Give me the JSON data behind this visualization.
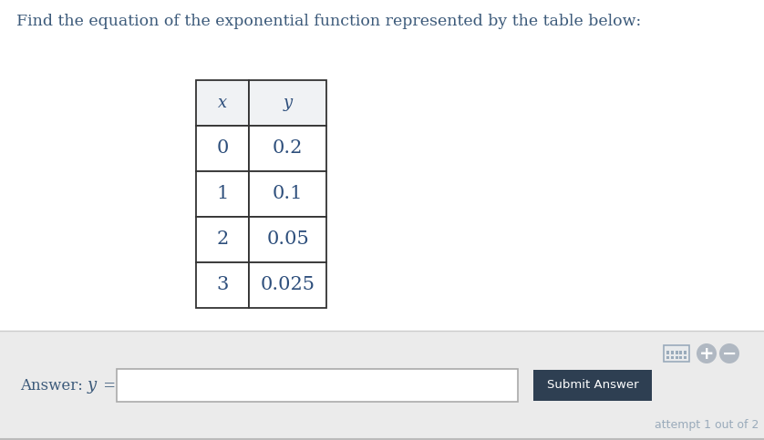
{
  "title": "Find the equation of the exponential function represented by the table below:",
  "title_color": "#3c5a7a",
  "title_fontsize": 12.5,
  "table_x": [
    "x",
    "0",
    "1",
    "2",
    "3"
  ],
  "table_y": [
    "y",
    "0.2",
    "0.1",
    "0.05",
    "0.025"
  ],
  "header_bg": "#f0f2f4",
  "cell_bg": "#ffffff",
  "table_text_color": "#2e4f7c",
  "submit_btn_text": "Submit Answer",
  "submit_btn_bg": "#2e3f52",
  "submit_btn_text_color": "#ffffff",
  "footer_text": "attempt 1 out of 2",
  "footer_color": "#9aabbb",
  "bottom_panel_bg": "#ebebeb",
  "border_color": "#333333",
  "answer_label_color": "#3c5a7a",
  "bottom_border_color": "#cccccc",
  "icon_bg": "#b0b8c2",
  "icon_border": "#9aabbb"
}
